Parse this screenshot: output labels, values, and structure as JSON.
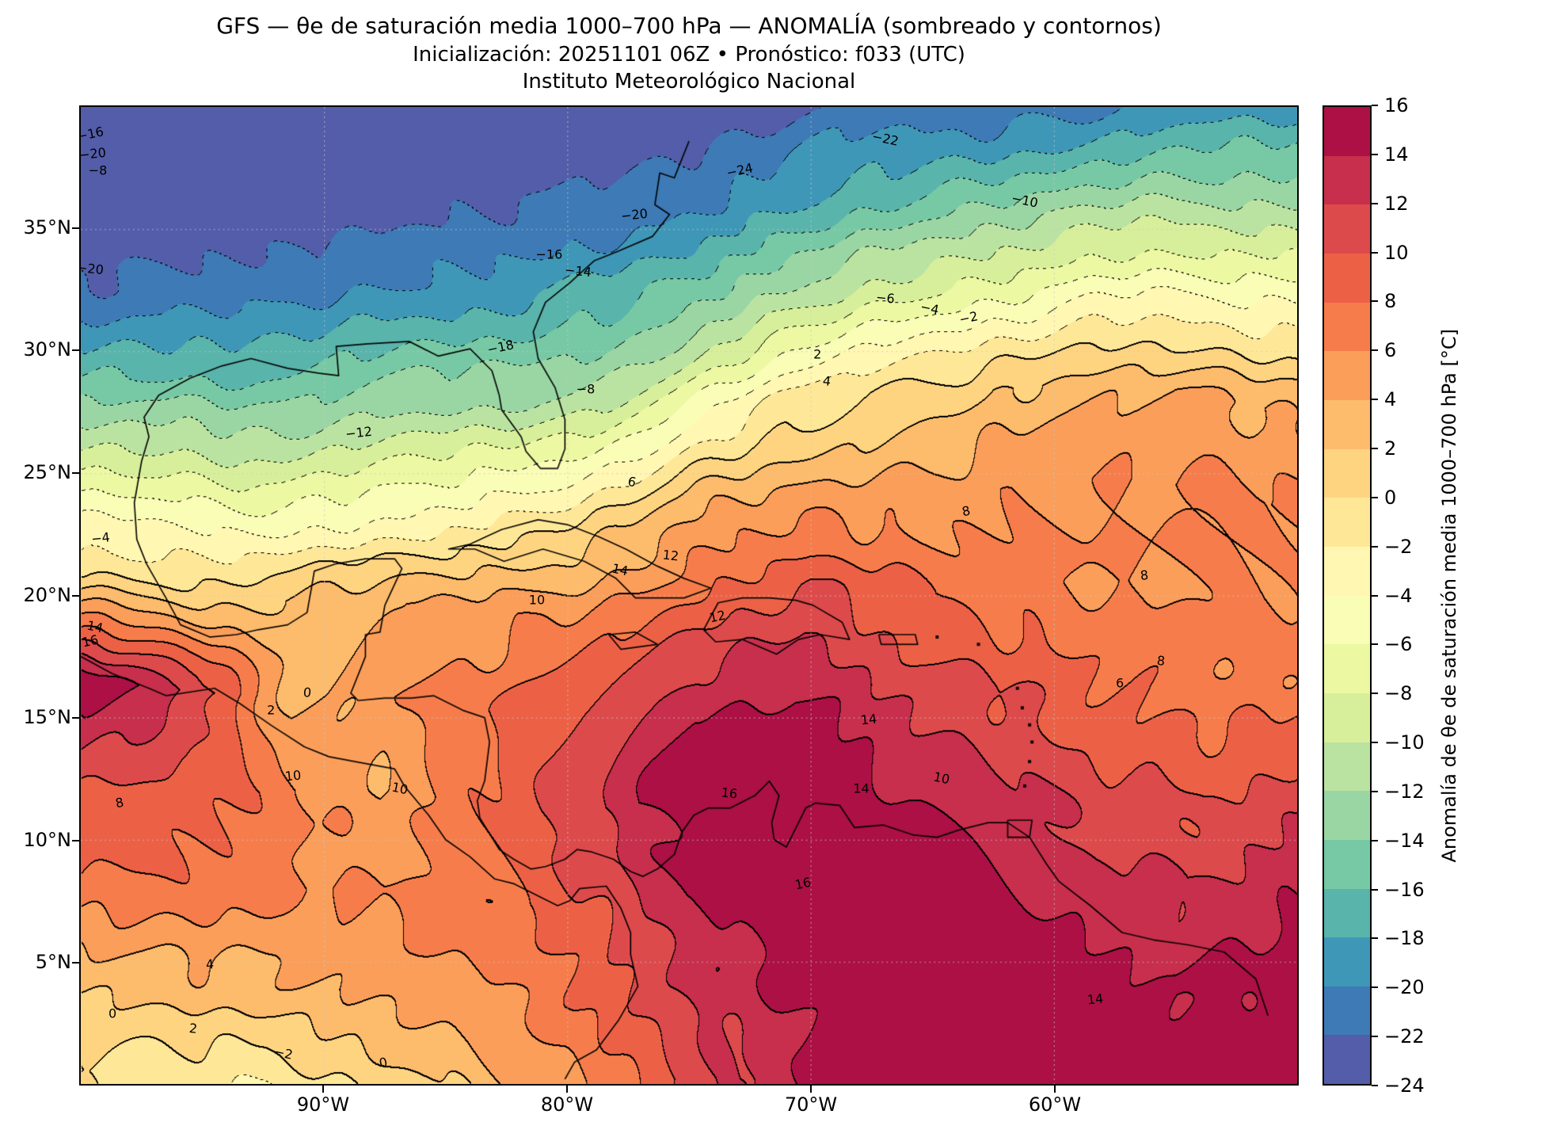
{
  "header": {
    "title": "GFS — θe de saturación media 1000–700 hPa — ANOMALÍA (sombreado y contornos)",
    "subtitle": "Inicialización: 20251101 06Z   •   Pronóstico: f033 (UTC)",
    "institution": "Instituto Meteorológico Nacional"
  },
  "axes": {
    "lat_ticks": [
      {
        "label": "35°N",
        "value": 35
      },
      {
        "label": "30°N",
        "value": 30
      },
      {
        "label": "25°N",
        "value": 25
      },
      {
        "label": "20°N",
        "value": 20
      },
      {
        "label": "15°N",
        "value": 15
      },
      {
        "label": "10°N",
        "value": 10
      },
      {
        "label": "5°N",
        "value": 5
      }
    ],
    "lon_ticks": [
      {
        "label": "90°W",
        "value": -90
      },
      {
        "label": "80°W",
        "value": -80
      },
      {
        "label": "70°W",
        "value": -70
      },
      {
        "label": "60°W",
        "value": -60
      }
    ]
  },
  "colorbar": {
    "label": "Anomalía de θe de saturación media 1000–700 hPa [°C]",
    "min": -24,
    "max": 16,
    "tick_values": [
      16,
      14,
      12,
      10,
      8,
      6,
      4,
      2,
      0,
      -2,
      -4,
      -6,
      -8,
      -10,
      -12,
      -14,
      -16,
      -18,
      -20,
      -22,
      -24
    ],
    "colors": [
      "#535da9",
      "#3d7ab6",
      "#3f97b7",
      "#59b4ab",
      "#77c9a5",
      "#9ad6a4",
      "#bae3a1",
      "#d7ef9b",
      "#ecf8a2",
      "#f9fdb5",
      "#fff7b2",
      "#fee898",
      "#fed481",
      "#fdbb6c",
      "#fb9e5a",
      "#f67d4b",
      "#ec6146",
      "#dd4a4c",
      "#c72f4c",
      "#ac1045"
    ]
  },
  "chart_data": {
    "type": "heatmap",
    "subtype": "filled-contour-map",
    "title": "GFS — θe de saturación media 1000–700 hPa — ANOMALÍA (sombreado y contornos)",
    "units": "°C",
    "contour_interval": 2,
    "value_range": [
      -24,
      16
    ],
    "lon_range": [
      -100,
      -50
    ],
    "lat_range": [
      0,
      40
    ],
    "grid_lons": [
      -100,
      -95.83,
      -91.67,
      -87.5,
      -83.33,
      -79.17,
      -75,
      -70.83,
      -66.67,
      -62.5,
      -58.33,
      -54.17,
      -50
    ],
    "grid_lats": [
      40,
      36,
      32,
      28,
      24,
      20,
      16,
      12,
      8,
      4,
      0
    ],
    "values": [
      [
        -27,
        -26,
        -26,
        -25,
        -25,
        -24,
        -24,
        -23,
        -22,
        -22,
        -21,
        -20,
        -19
      ],
      [
        -25,
        -25,
        -24,
        -23,
        -22,
        -21,
        -20,
        -19,
        -17,
        -15,
        -13,
        -12,
        -11
      ],
      [
        -22,
        -21,
        -20,
        -19,
        -18,
        -16,
        -14,
        -12,
        -9,
        -7,
        -5,
        -4,
        -3
      ],
      [
        -15,
        -14,
        -14,
        -13,
        -12,
        -10,
        -6,
        -2,
        0,
        2,
        3,
        4,
        4
      ],
      [
        -7,
        -6,
        -6,
        -5,
        -3,
        0,
        3,
        4,
        5,
        6,
        6,
        6,
        6
      ],
      [
        0,
        1,
        3,
        4,
        5,
        6,
        8,
        10,
        8,
        7,
        6,
        6,
        6
      ],
      [
        15,
        12,
        3,
        6,
        8,
        10,
        13,
        14,
        12,
        10,
        8,
        7,
        7
      ],
      [
        10,
        9,
        7,
        4,
        8,
        12,
        16,
        16,
        14,
        12,
        10,
        10,
        12
      ],
      [
        8,
        7,
        6,
        6,
        8,
        10,
        14,
        16,
        16,
        14,
        12,
        12,
        14
      ],
      [
        3,
        3,
        3,
        4,
        5,
        8,
        12,
        14,
        16,
        16,
        15,
        14,
        15
      ],
      [
        0,
        -1,
        -2,
        0,
        2,
        5,
        10,
        13,
        15,
        16,
        16,
        15,
        16
      ]
    ],
    "contour_labels": [
      {
        "v": -16,
        "lon": -99.6,
        "lat": 38.9
      },
      {
        "v": -20,
        "lon": -99.5,
        "lat": 38.1
      },
      {
        "v": -8,
        "lon": -99.3,
        "lat": 37.4
      },
      {
        "v": -20,
        "lon": -99.6,
        "lat": 33.4
      },
      {
        "v": -22,
        "lon": -67.0,
        "lat": 38.7
      },
      {
        "v": -24,
        "lon": -73.0,
        "lat": 37.4
      },
      {
        "v": -20,
        "lon": -77.3,
        "lat": 35.6
      },
      {
        "v": -16,
        "lon": -80.8,
        "lat": 34.0
      },
      {
        "v": -14,
        "lon": -79.6,
        "lat": 33.3
      },
      {
        "v": -10,
        "lon": -61.3,
        "lat": 36.2
      },
      {
        "v": -18,
        "lon": -82.8,
        "lat": 30.2
      },
      {
        "v": -12,
        "lon": -88.6,
        "lat": 26.7
      },
      {
        "v": -8,
        "lon": -79.3,
        "lat": 28.5
      },
      {
        "v": -6,
        "lon": -67.0,
        "lat": 32.2
      },
      {
        "v": -4,
        "lon": -65.2,
        "lat": 31.8
      },
      {
        "v": -2,
        "lon": -63.6,
        "lat": 31.4
      },
      {
        "v": -4,
        "lon": -99.2,
        "lat": 22.4
      },
      {
        "v": 2,
        "lon": -69.8,
        "lat": 29.9
      },
      {
        "v": 4,
        "lon": -69.4,
        "lat": 28.8
      },
      {
        "v": 6,
        "lon": -77.4,
        "lat": 24.7
      },
      {
        "v": 8,
        "lon": -63.7,
        "lat": 23.5
      },
      {
        "v": 8,
        "lon": -56.4,
        "lat": 20.9
      },
      {
        "v": 10,
        "lon": -81.3,
        "lat": 19.9
      },
      {
        "v": 12,
        "lon": -75.8,
        "lat": 21.7
      },
      {
        "v": 14,
        "lon": -77.9,
        "lat": 21.1
      },
      {
        "v": 12,
        "lon": -73.9,
        "lat": 19.2
      },
      {
        "v": 14,
        "lon": -67.7,
        "lat": 15.0
      },
      {
        "v": 14,
        "lon": -68.0,
        "lat": 12.2
      },
      {
        "v": 16,
        "lon": -73.4,
        "lat": 12.0
      },
      {
        "v": 10,
        "lon": -86.9,
        "lat": 12.2
      },
      {
        "v": 8,
        "lon": -98.4,
        "lat": 11.6
      },
      {
        "v": 10,
        "lon": -91.3,
        "lat": 12.7
      },
      {
        "v": 6,
        "lon": -57.4,
        "lat": 16.5
      },
      {
        "v": 8,
        "lon": -55.7,
        "lat": 17.4
      },
      {
        "v": 10,
        "lon": -64.7,
        "lat": 12.6
      },
      {
        "v": 16,
        "lon": -70.4,
        "lat": 8.3
      },
      {
        "v": 14,
        "lon": -58.4,
        "lat": 3.6
      },
      {
        "v": 0,
        "lon": -98.7,
        "lat": 3.0
      },
      {
        "v": 2,
        "lon": -95.4,
        "lat": 2.4
      },
      {
        "v": -2,
        "lon": -91.7,
        "lat": 1.4
      },
      {
        "v": 0,
        "lon": -87.6,
        "lat": 1.0
      },
      {
        "v": 4,
        "lon": -94.7,
        "lat": 5.0
      },
      {
        "v": 2,
        "lon": -92.2,
        "lat": 15.4
      },
      {
        "v": 0,
        "lon": -90.7,
        "lat": 16.1
      },
      {
        "v": 14,
        "lon": -99.4,
        "lat": 18.8
      },
      {
        "v": 16,
        "lon": -99.6,
        "lat": 18.2
      }
    ]
  }
}
